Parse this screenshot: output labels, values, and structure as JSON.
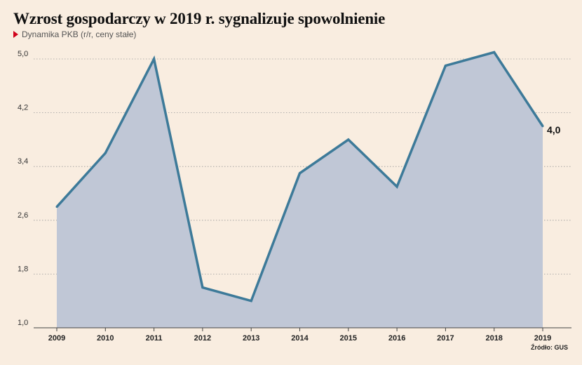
{
  "chart_data": {
    "type": "area",
    "title": "Wzrost gospodarczy w 2019 r. sygnalizuje spowolnienie",
    "subtitle": "Dynamika PKB (r/r, ceny stałe)",
    "source": "Źródło: GUS",
    "x": [
      "2009",
      "2010",
      "2011",
      "2012",
      "2013",
      "2014",
      "2015",
      "2016",
      "2017",
      "2018",
      "2019"
    ],
    "series": [
      {
        "name": "",
        "values": [
          2.8,
          3.6,
          5.0,
          1.6,
          1.4,
          3.3,
          3.8,
          3.1,
          4.9,
          5.1,
          4.0
        ]
      }
    ],
    "end_label": "4,0",
    "ylim": [
      1.0,
      5.2
    ],
    "yticks": [
      1.0,
      1.8,
      2.6,
      3.4,
      4.2,
      5.0
    ],
    "ytick_labels": [
      "1,0",
      "1,8",
      "2,6",
      "3,4",
      "4,2",
      "5,0"
    ],
    "grid": true,
    "colors": {
      "background": "#f9ede0",
      "line": "#3d7a99",
      "fill": "#c0c7d6",
      "grid": "#9a9a9a"
    }
  }
}
